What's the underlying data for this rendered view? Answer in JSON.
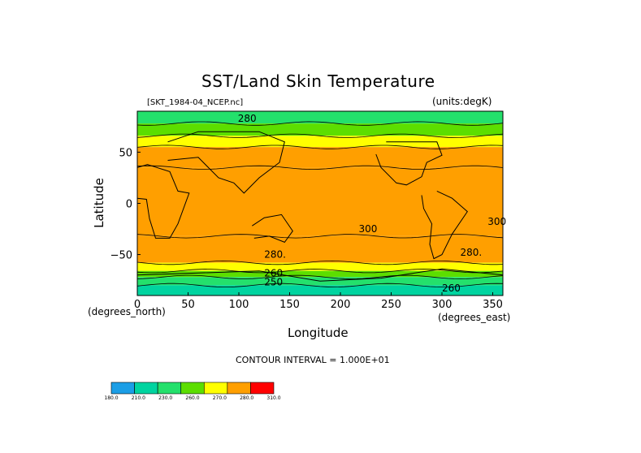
{
  "chart_data": {
    "type": "heatmap",
    "title": "SST/Land Skin Temperature",
    "source_label": "[SKT_1984-04_NCEP.nc]",
    "units_label": "(units:degK)",
    "xlabel": "Longitude",
    "ylabel": "Latitude",
    "x_units_left": "(degrees_north)",
    "x_units_right": "(degrees_east)",
    "xlim": [
      0,
      360
    ],
    "ylim": [
      -90,
      90
    ],
    "x_ticks": [
      "0",
      "50",
      "100",
      "150",
      "200",
      "250",
      "300",
      "350"
    ],
    "x_tick_values": [
      0,
      50,
      100,
      150,
      200,
      250,
      300,
      350
    ],
    "y_ticks": [
      "50",
      "0",
      "−50"
    ],
    "y_tick_values": [
      50,
      0,
      -50
    ],
    "contour_interval_text": "CONTOUR INTERVAL = 1.000E+01",
    "contour_labels": [
      "280",
      "300",
      "300",
      "280.",
      "280.",
      "260",
      "260",
      "250"
    ],
    "colorbar": {
      "bounds": [
        180,
        210,
        230,
        260,
        270,
        280,
        310
      ],
      "tick_labels": [
        "180.0",
        "210.0",
        "230.0",
        "260.0",
        "270.0",
        "280.0",
        "310.0"
      ],
      "colors": [
        "#1b9ee6",
        "#00d4a0",
        "#24e06c",
        "#5cde00",
        "#ffff00",
        "#ff9f00",
        "#ff0000"
      ]
    },
    "zonal_bands": [
      {
        "lat_min": 78,
        "lat_max": 90,
        "level": 250
      },
      {
        "lat_min": 66,
        "lat_max": 78,
        "level": 265
      },
      {
        "lat_min": 55,
        "lat_max": 66,
        "level": 275
      },
      {
        "lat_min": 35,
        "lat_max": 55,
        "level": 285
      },
      {
        "lat_min": -32,
        "lat_max": 35,
        "level": 300
      },
      {
        "lat_min": -58,
        "lat_max": -32,
        "level": 285
      },
      {
        "lat_min": -66,
        "lat_max": -58,
        "level": 275
      },
      {
        "lat_min": -72,
        "lat_max": -66,
        "level": 265
      },
      {
        "lat_min": -80,
        "lat_max": -72,
        "level": 235
      },
      {
        "lat_min": -90,
        "lat_max": -80,
        "level": 215
      }
    ],
    "grid": false,
    "legend_position": "bottom-left"
  }
}
